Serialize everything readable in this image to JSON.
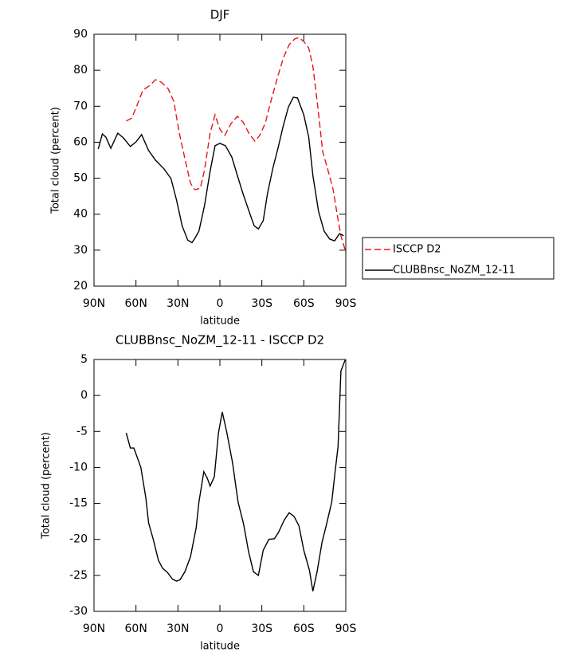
{
  "chart_data": [
    {
      "type": "line",
      "title": "DJF",
      "x_label": "latitude",
      "y_label": "Total cloud (percent)",
      "xlim": [
        90,
        -90
      ],
      "xticks": [
        {
          "value": 90,
          "label": "90N"
        },
        {
          "value": 60,
          "label": "60N"
        },
        {
          "value": 30,
          "label": "30N"
        },
        0,
        {
          "value": -30,
          "label": "30S"
        },
        {
          "value": -60,
          "label": "60S"
        },
        {
          "value": -90,
          "label": "90S"
        }
      ],
      "ylim": [
        20,
        90
      ],
      "yticks": [
        20,
        30,
        40,
        50,
        60,
        70,
        80,
        90
      ],
      "legend": "right",
      "series": [
        {
          "name": "ISCCP D2",
          "color": "#e8141b",
          "dashed": true,
          "x": [
            67,
            63,
            59,
            55,
            50,
            46,
            42,
            37,
            33,
            29,
            25,
            21,
            18,
            14,
            11,
            7,
            3.5,
            0,
            -3.5,
            -8,
            -12.5,
            -16.5,
            -21,
            -25,
            -28.5,
            -32.5,
            -36,
            -41,
            -45.5,
            -49.5,
            -53.5,
            -56.5,
            -60,
            -63.5,
            -66.5,
            -70,
            -73.5,
            -77,
            -81,
            -84,
            -86.5,
            -90
          ],
          "values": [
            65.9,
            66.7,
            70.5,
            74.5,
            75.8,
            77.4,
            76.7,
            74.9,
            71.4,
            62.5,
            55.4,
            48.6,
            46.8,
            47.2,
            52.3,
            62.5,
            67.6,
            63.6,
            61.9,
            65.2,
            67.2,
            65.6,
            62.3,
            60.3,
            61.9,
            65.4,
            70.7,
            77.8,
            83.6,
            87.1,
            88.7,
            89.1,
            88,
            86.2,
            81.1,
            69.8,
            57.4,
            52.6,
            46.8,
            39.5,
            34,
            29.5
          ]
        },
        {
          "name": "CLUBBnsc_NoZM_12-11",
          "color": "#000000",
          "dashed": false,
          "x": [
            87,
            84,
            81.5,
            78,
            73,
            69,
            64,
            60,
            56,
            51,
            46,
            40,
            35,
            31,
            27,
            23,
            20,
            18,
            15,
            11,
            7,
            3.5,
            0,
            -4,
            -8.5,
            -12.5,
            -16.5,
            -21,
            -24.5,
            -27.5,
            -31,
            -34,
            -38,
            -41.5,
            -45,
            -49,
            -52.5,
            -55.5,
            -60,
            -63.5,
            -66.5,
            -70.5,
            -74.5,
            -78.5,
            -82,
            -85.5,
            -88.5
          ],
          "values": [
            58.1,
            62.3,
            61.4,
            58.3,
            62.5,
            61.2,
            58.8,
            60.1,
            62.1,
            57.7,
            55,
            52.6,
            49.9,
            43.9,
            36.8,
            32.8,
            32.1,
            33.2,
            35.3,
            42.4,
            51.9,
            59,
            59.7,
            59,
            55.9,
            50.8,
            45.7,
            40.6,
            36.8,
            35.9,
            38.2,
            45.7,
            53,
            58.3,
            64.1,
            69.8,
            72.5,
            72.3,
            67.6,
            61.4,
            50.8,
            40.8,
            35.3,
            33.1,
            32.6,
            34.6,
            34
          ]
        }
      ]
    },
    {
      "type": "line",
      "title": "CLUBBnsc_NoZM_12-11 - ISCCP D2",
      "x_label": "latitude",
      "y_label": "Total cloud (percent)",
      "xlim": [
        90,
        -90
      ],
      "xticks": [
        {
          "value": 90,
          "label": "90N"
        },
        {
          "value": 60,
          "label": "60N"
        },
        {
          "value": 30,
          "label": "30N"
        },
        0,
        {
          "value": -30,
          "label": "30S"
        },
        {
          "value": -60,
          "label": "60S"
        },
        {
          "value": -90,
          "label": "90S"
        }
      ],
      "ylim": [
        -30,
        5
      ],
      "yticks": [
        -30,
        -25,
        -20,
        -15,
        -10,
        -5,
        0,
        5
      ],
      "series": [
        {
          "color": "#000000",
          "dashed": false,
          "x": [
            67,
            64,
            61.5,
            56.5,
            53,
            51,
            47.5,
            44,
            41,
            37.5,
            34,
            31,
            28.5,
            25,
            21,
            17,
            15,
            11.5,
            9,
            7,
            4,
            1,
            -1.7,
            -5,
            -9,
            -13,
            -17,
            -20.5,
            -24,
            -27.5,
            -31,
            -35,
            -39,
            -42,
            -46,
            -49.5,
            -53,
            -56.5,
            -60,
            -64,
            -66.5,
            -69.5,
            -73,
            -76,
            -80,
            -82.5,
            -84.5,
            -86.5,
            -89.5
          ],
          "values": [
            -5.2,
            -7.3,
            -7.3,
            -10,
            -14.2,
            -17.7,
            -20.1,
            -22.9,
            -24,
            -24.6,
            -25.5,
            -25.8,
            -25.6,
            -24.5,
            -22.4,
            -18.4,
            -14.8,
            -10.6,
            -11.5,
            -12.6,
            -11.3,
            -5.2,
            -2.3,
            -5.2,
            -9.3,
            -14.8,
            -17.9,
            -21.7,
            -24.5,
            -25,
            -21.5,
            -20,
            -19.9,
            -19,
            -17.3,
            -16.3,
            -16.8,
            -18.1,
            -21.5,
            -24.3,
            -27.2,
            -24.5,
            -20.4,
            -18.1,
            -14.8,
            -10.4,
            -7.1,
            3.4,
            4.9
          ]
        }
      ]
    }
  ]
}
